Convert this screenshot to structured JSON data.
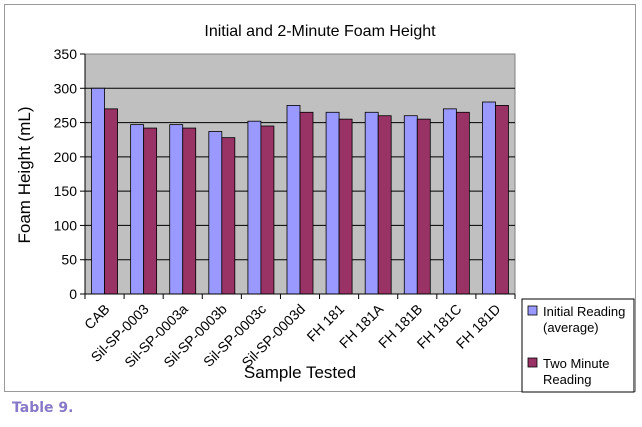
{
  "chart_data": {
    "type": "bar",
    "title": "Initial and 2-Minute Foam Height",
    "xlabel": "Sample Tested",
    "ylabel": "Foam Height (mL)",
    "ylim": [
      0,
      350
    ],
    "yticks": [
      0,
      50,
      100,
      150,
      200,
      250,
      300,
      350
    ],
    "grid": true,
    "legend_position": "right",
    "categories": [
      "CAB",
      "Sil-SP-0003",
      "Sil-SP-0003a",
      "Sil-SP-0003b",
      "Sil-SP-0003c",
      "Sil-SP-0003d",
      "FH 181",
      "FH 181A",
      "FH 181B",
      "FH 181C",
      "FH 181D"
    ],
    "series": [
      {
        "name": "Initial Reading (average)",
        "color": "#9999ff",
        "values": [
          300,
          247,
          247,
          237,
          252,
          275,
          265,
          265,
          260,
          270,
          280
        ]
      },
      {
        "name": "Two Minute Reading",
        "color": "#993366",
        "values": [
          270,
          242,
          242,
          228,
          245,
          265,
          255,
          260,
          255,
          265,
          275
        ]
      }
    ],
    "plot_background": "#c0c0c0"
  },
  "caption": "Table 9."
}
